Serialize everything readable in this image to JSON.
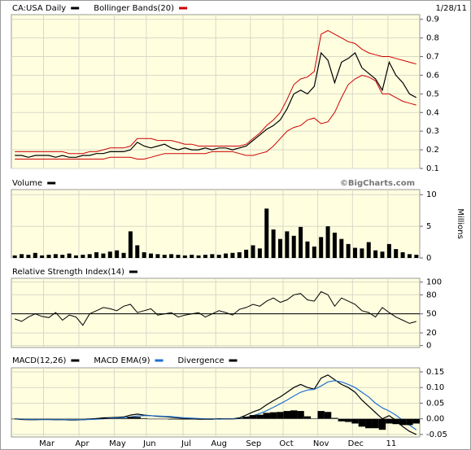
{
  "chart_data": [
    {
      "type": "price",
      "date": "1/28/11",
      "grid": true,
      "xlim": [
        -0.5,
        59.5
      ],
      "ylim": [
        0.1,
        0.925
      ],
      "yticks": [
        0.1,
        0.2,
        0.3,
        0.4,
        0.5,
        0.6,
        0.7,
        0.8,
        0.9
      ],
      "series": [
        {
          "name": "CA:USA Daily",
          "color": "#000000",
          "values": [
            0.17,
            0.17,
            0.16,
            0.17,
            0.17,
            0.17,
            0.16,
            0.17,
            0.16,
            0.16,
            0.17,
            0.17,
            0.18,
            0.18,
            0.19,
            0.19,
            0.19,
            0.2,
            0.24,
            0.22,
            0.21,
            0.22,
            0.23,
            0.21,
            0.2,
            0.21,
            0.2,
            0.2,
            0.21,
            0.2,
            0.21,
            0.21,
            0.2,
            0.21,
            0.22,
            0.25,
            0.28,
            0.31,
            0.33,
            0.36,
            0.42,
            0.5,
            0.52,
            0.5,
            0.54,
            0.72,
            0.68,
            0.56,
            0.67,
            0.69,
            0.72,
            0.64,
            0.61,
            0.58,
            0.52,
            0.67,
            0.6,
            0.56,
            0.5,
            0.48
          ]
        },
        {
          "name": "Bollinger Bands(20)",
          "color": "#cc0000",
          "upper": [
            0.19,
            0.19,
            0.19,
            0.19,
            0.19,
            0.19,
            0.19,
            0.19,
            0.18,
            0.18,
            0.18,
            0.19,
            0.19,
            0.2,
            0.21,
            0.21,
            0.21,
            0.22,
            0.26,
            0.26,
            0.26,
            0.25,
            0.25,
            0.25,
            0.24,
            0.23,
            0.23,
            0.22,
            0.22,
            0.22,
            0.22,
            0.22,
            0.22,
            0.22,
            0.23,
            0.26,
            0.29,
            0.33,
            0.36,
            0.4,
            0.47,
            0.55,
            0.58,
            0.59,
            0.62,
            0.82,
            0.84,
            0.82,
            0.8,
            0.78,
            0.77,
            0.74,
            0.72,
            0.71,
            0.7,
            0.7,
            0.69,
            0.68,
            0.67,
            0.66
          ],
          "lower": [
            0.15,
            0.15,
            0.15,
            0.15,
            0.15,
            0.15,
            0.15,
            0.15,
            0.15,
            0.15,
            0.15,
            0.15,
            0.15,
            0.15,
            0.16,
            0.16,
            0.16,
            0.16,
            0.15,
            0.15,
            0.16,
            0.17,
            0.18,
            0.18,
            0.18,
            0.18,
            0.18,
            0.18,
            0.18,
            0.19,
            0.19,
            0.19,
            0.19,
            0.18,
            0.17,
            0.17,
            0.18,
            0.19,
            0.22,
            0.26,
            0.3,
            0.32,
            0.33,
            0.36,
            0.37,
            0.34,
            0.35,
            0.4,
            0.48,
            0.55,
            0.58,
            0.6,
            0.59,
            0.57,
            0.5,
            0.5,
            0.48,
            0.46,
            0.45,
            0.44
          ]
        }
      ]
    },
    {
      "type": "bar",
      "source": "©BigCharts.com",
      "ylabel": "Millions",
      "grid": true,
      "xlim": [
        -0.5,
        59.5
      ],
      "ylim": [
        0,
        10.8
      ],
      "yticks": [
        0,
        5,
        10
      ],
      "series": [
        {
          "name": "Volume",
          "color": "#000000",
          "values": [
            0.4,
            0.6,
            0.5,
            0.8,
            0.4,
            0.5,
            0.6,
            0.5,
            0.7,
            0.4,
            0.5,
            0.6,
            0.9,
            0.7,
            1.0,
            1.2,
            0.8,
            4.2,
            2.0,
            0.9,
            0.7,
            0.6,
            0.5,
            0.6,
            0.5,
            0.4,
            0.5,
            0.4,
            0.5,
            0.6,
            0.5,
            0.7,
            0.8,
            0.9,
            1.3,
            2.0,
            1.5,
            7.8,
            4.5,
            3.0,
            4.2,
            3.5,
            4.9,
            2.6,
            1.8,
            3.3,
            5.0,
            4.0,
            3.0,
            2.2,
            1.6,
            1.5,
            2.5,
            1.2,
            1.0,
            2.2,
            1.4,
            0.9,
            0.6,
            0.5
          ]
        }
      ]
    },
    {
      "type": "line",
      "grid": true,
      "reference": 50,
      "xlim": [
        -0.5,
        59.5
      ],
      "ylim": [
        -3,
        106
      ],
      "yticks": [
        0,
        20,
        50,
        80,
        100
      ],
      "series": [
        {
          "name": "Relative Strength Index(14)",
          "color": "#000000",
          "values": [
            42,
            38,
            45,
            50,
            46,
            44,
            52,
            40,
            48,
            45,
            32,
            50,
            55,
            60,
            58,
            55,
            62,
            65,
            52,
            55,
            58,
            48,
            50,
            52,
            45,
            48,
            50,
            52,
            45,
            50,
            55,
            52,
            48,
            57,
            60,
            65,
            62,
            70,
            75,
            68,
            72,
            80,
            82,
            72,
            70,
            85,
            80,
            62,
            75,
            70,
            65,
            55,
            52,
            45,
            60,
            52,
            45,
            40,
            35,
            38
          ]
        }
      ]
    },
    {
      "type": "macd",
      "grid": true,
      "xlim": [
        -0.5,
        59.5
      ],
      "ylim": [
        -0.058,
        0.163
      ],
      "yticks": [
        -0.05,
        {
          "value": 0,
          "label": "0.00"
        },
        0.05,
        {
          "value": 0.1,
          "label": "0.10"
        },
        0.15
      ],
      "xticks": [
        {
          "value": 4.7,
          "label": "Mar"
        },
        {
          "value": 9.9,
          "label": "Apr"
        },
        {
          "value": 15.1,
          "label": "May"
        },
        {
          "value": 19.8,
          "label": "Jun"
        },
        {
          "value": 25.2,
          "label": "Jul"
        },
        {
          "value": 30.0,
          "label": "Aug"
        },
        {
          "value": 35.1,
          "label": "Sep"
        },
        {
          "value": 39.9,
          "label": "Oct"
        },
        {
          "value": 45.0,
          "label": "Nov"
        },
        {
          "value": 50.1,
          "label": "Dec"
        },
        {
          "value": 55.3,
          "label": "11"
        }
      ],
      "series": [
        {
          "name": "MACD(12,26)",
          "color": "#000000",
          "style": "line",
          "values": [
            0.0,
            -0.002,
            -0.003,
            -0.003,
            -0.002,
            -0.002,
            -0.003,
            -0.003,
            -0.004,
            -0.004,
            -0.003,
            -0.001,
            0.001,
            0.003,
            0.004,
            0.005,
            0.006,
            0.012,
            0.015,
            0.012,
            0.01,
            0.008,
            0.007,
            0.005,
            0.003,
            0.001,
            0.0,
            -0.001,
            -0.001,
            -0.001,
            0.0,
            0.0,
            0.0,
            0.003,
            0.012,
            0.022,
            0.03,
            0.045,
            0.058,
            0.07,
            0.085,
            0.1,
            0.11,
            0.1,
            0.095,
            0.13,
            0.14,
            0.125,
            0.11,
            0.1,
            0.085,
            0.06,
            0.04,
            0.02,
            0.0,
            0.01,
            -0.005,
            -0.025,
            -0.04,
            -0.05
          ]
        },
        {
          "name": "MACD EMA(9)",
          "color": "#1f6fd0",
          "style": "line",
          "values": [
            0.0,
            -0.001,
            -0.002,
            -0.002,
            -0.002,
            -0.002,
            -0.002,
            -0.003,
            -0.003,
            -0.003,
            -0.003,
            -0.002,
            -0.001,
            0.0,
            0.002,
            0.003,
            0.004,
            0.006,
            0.009,
            0.01,
            0.01,
            0.009,
            0.008,
            0.007,
            0.005,
            0.003,
            0.002,
            0.001,
            0.0,
            0.0,
            -0.001,
            0.0,
            0.0,
            0.001,
            0.005,
            0.01,
            0.017,
            0.026,
            0.037,
            0.048,
            0.06,
            0.073,
            0.085,
            0.092,
            0.094,
            0.105,
            0.118,
            0.122,
            0.118,
            0.11,
            0.1,
            0.085,
            0.07,
            0.05,
            0.035,
            0.025,
            0.012,
            -0.005,
            -0.02,
            -0.035
          ]
        },
        {
          "name": "Divergence",
          "color": "#000000",
          "style": "bar",
          "values": [
            0,
            -0.001,
            -0.001,
            -0.001,
            0,
            0,
            -0.001,
            0,
            -0.001,
            -0.001,
            0,
            0.001,
            0.002,
            0.003,
            0.002,
            0.002,
            0.002,
            0.006,
            0.006,
            0.002,
            0,
            -0.001,
            -0.001,
            -0.002,
            -0.002,
            -0.002,
            -0.002,
            -0.002,
            -0.001,
            -0.001,
            0.001,
            0,
            0,
            0.002,
            0.007,
            0.012,
            0.013,
            0.019,
            0.021,
            0.022,
            0.025,
            0.027,
            0.025,
            0.008,
            0.001,
            0.025,
            0.022,
            0.003,
            -0.008,
            -0.01,
            -0.015,
            -0.025,
            -0.03,
            -0.03,
            -0.035,
            -0.015,
            -0.017,
            -0.02,
            -0.02,
            -0.015
          ]
        }
      ]
    }
  ]
}
